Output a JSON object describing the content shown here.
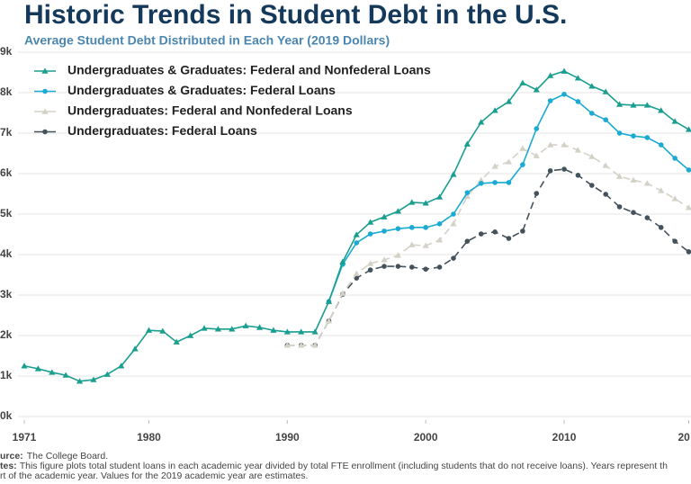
{
  "chart_data": {
    "type": "line",
    "title": "Historic Trends in Student Debt in the U.S.",
    "subtitle": "Average Student Debt Distributed in Each Year (2019 Dollars)",
    "x": [
      1971,
      1972,
      1973,
      1974,
      1975,
      1976,
      1977,
      1978,
      1979,
      1980,
      1981,
      1982,
      1983,
      1984,
      1985,
      1986,
      1987,
      1988,
      1989,
      1990,
      1991,
      1992,
      1993,
      1994,
      1995,
      1996,
      1997,
      1998,
      1999,
      2000,
      2001,
      2002,
      2003,
      2004,
      2005,
      2006,
      2007,
      2008,
      2009,
      2010,
      2011,
      2012,
      2013,
      2014,
      2015,
      2016,
      2017,
      2018,
      2019
    ],
    "series": [
      {
        "name": "Undergraduates & Graduates: Federal and Nonfederal Loans",
        "color": "#1a9e8f",
        "marker": "triangle",
        "dashed": false,
        "values": [
          1250,
          1180,
          1090,
          1020,
          870,
          910,
          1040,
          1250,
          1670,
          2130,
          2110,
          1840,
          2000,
          2180,
          2160,
          2160,
          2240,
          2200,
          2130,
          2090,
          2090,
          2090,
          2840,
          3820,
          4490,
          4800,
          4930,
          5070,
          5290,
          5270,
          5420,
          5980,
          6730,
          7270,
          7560,
          7780,
          8240,
          8070,
          8420,
          8530,
          8360,
          8160,
          8020,
          7710,
          7690,
          7690,
          7560,
          7290,
          7090
        ]
      },
      {
        "name": "Undergraduates & Graduates: Federal Loans",
        "color": "#1aaad2",
        "marker": "circle",
        "dashed": false,
        "values": [
          null,
          null,
          null,
          null,
          null,
          null,
          null,
          null,
          null,
          null,
          null,
          null,
          null,
          null,
          null,
          null,
          null,
          null,
          null,
          null,
          null,
          null,
          2840,
          3760,
          4290,
          4510,
          4580,
          4640,
          4670,
          4670,
          4760,
          5000,
          5530,
          5760,
          5780,
          5780,
          6220,
          7110,
          7800,
          7960,
          7780,
          7490,
          7330,
          7000,
          6930,
          6890,
          6710,
          6380,
          6090
        ]
      },
      {
        "name": "Undergraduates: Federal and Nonfederal Loans",
        "color": "#d4d1c6",
        "marker": "triangle",
        "dashed": true,
        "values": [
          null,
          null,
          null,
          null,
          null,
          null,
          null,
          null,
          null,
          null,
          null,
          null,
          null,
          null,
          null,
          null,
          null,
          null,
          null,
          1760,
          1760,
          1760,
          2360,
          3040,
          3530,
          3780,
          3870,
          3980,
          4240,
          4220,
          4360,
          4760,
          5440,
          5840,
          6180,
          6290,
          6620,
          6440,
          6710,
          6710,
          6580,
          6420,
          6200,
          5930,
          5840,
          5760,
          5580,
          5380,
          5160
        ]
      },
      {
        "name": "Undergraduates: Federal Loans",
        "color": "#44525c",
        "marker": "circle",
        "dashed": true,
        "values": [
          null,
          null,
          null,
          null,
          null,
          null,
          null,
          null,
          null,
          null,
          null,
          null,
          null,
          null,
          null,
          null,
          null,
          null,
          null,
          1760,
          1760,
          1760,
          2360,
          3020,
          3420,
          3620,
          3710,
          3710,
          3690,
          3640,
          3690,
          3910,
          4330,
          4510,
          4560,
          4400,
          4580,
          5510,
          6070,
          6110,
          5960,
          5710,
          5490,
          5180,
          5040,
          4910,
          4670,
          4330,
          4070
        ]
      }
    ],
    "xlim": [
      1971,
      2019
    ],
    "xticks": [
      1971,
      1980,
      1990,
      2000,
      2010,
      {
        "value": 2019,
        "label": "20"
      }
    ],
    "ylim": [
      0,
      9000
    ],
    "yticks": [
      {
        "value": 0,
        "label": "0k"
      },
      {
        "value": 1000,
        "label": "1k"
      },
      {
        "value": 2000,
        "label": "2k"
      },
      {
        "value": 3000,
        "label": "3k"
      },
      {
        "value": 4000,
        "label": "4k"
      },
      {
        "value": 5000,
        "label": "5k"
      },
      {
        "value": 6000,
        "label": "6k"
      },
      {
        "value": 7000,
        "label": "7k"
      },
      {
        "value": 8000,
        "label": "8k"
      },
      {
        "value": 9000,
        "label": "9k"
      }
    ],
    "grid": true,
    "legend": "upper-left",
    "source_label": "urce:",
    "source": "The College Board.",
    "notes_label": "tes:",
    "notes": [
      "This figure plots total student loans in each academic year divided by total FTE enrollment (including students that do not receive loans). Years represent th",
      "rt of the academic year. Values for the 2019 academic year are estimates."
    ]
  }
}
